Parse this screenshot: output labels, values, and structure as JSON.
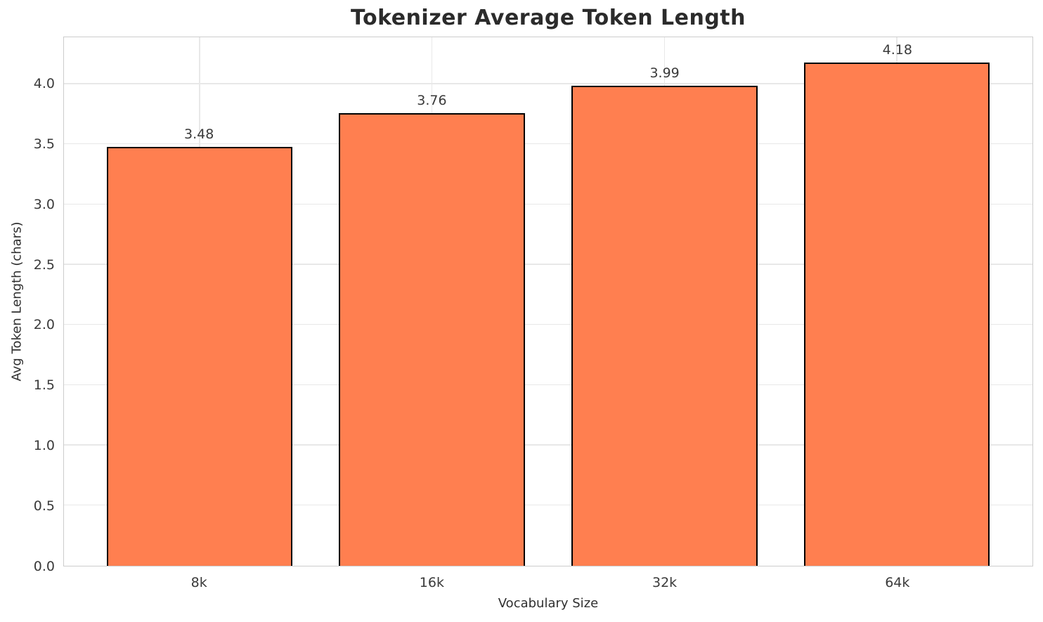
{
  "chart_data": {
    "type": "bar",
    "title": "Tokenizer Average Token Length",
    "xlabel": "Vocabulary Size",
    "ylabel": "Avg Token Length (chars)",
    "categories": [
      "8k",
      "16k",
      "32k",
      "64k"
    ],
    "values": [
      3.48,
      3.76,
      3.99,
      4.18
    ],
    "value_labels": [
      "3.48",
      "3.76",
      "3.99",
      "4.18"
    ],
    "ylim": [
      0,
      4.39
    ],
    "yticks": [
      0.0,
      0.5,
      1.0,
      1.5,
      2.0,
      2.5,
      3.0,
      3.5,
      4.0
    ],
    "ytick_labels": [
      "0.0",
      "0.5",
      "1.0",
      "1.5",
      "2.0",
      "2.5",
      "3.0",
      "3.5",
      "4.0"
    ],
    "grid": "horizontal-and-vertical",
    "legend": "none",
    "colors": {
      "bar_fill": "#FF7F50",
      "bar_edge": "#000000",
      "grid_color": "#e8e8e8",
      "spine_color": "#cccccc",
      "text_color": "#3a3a3a",
      "title_color": "#2b2b2b",
      "background": "#ffffff"
    }
  }
}
